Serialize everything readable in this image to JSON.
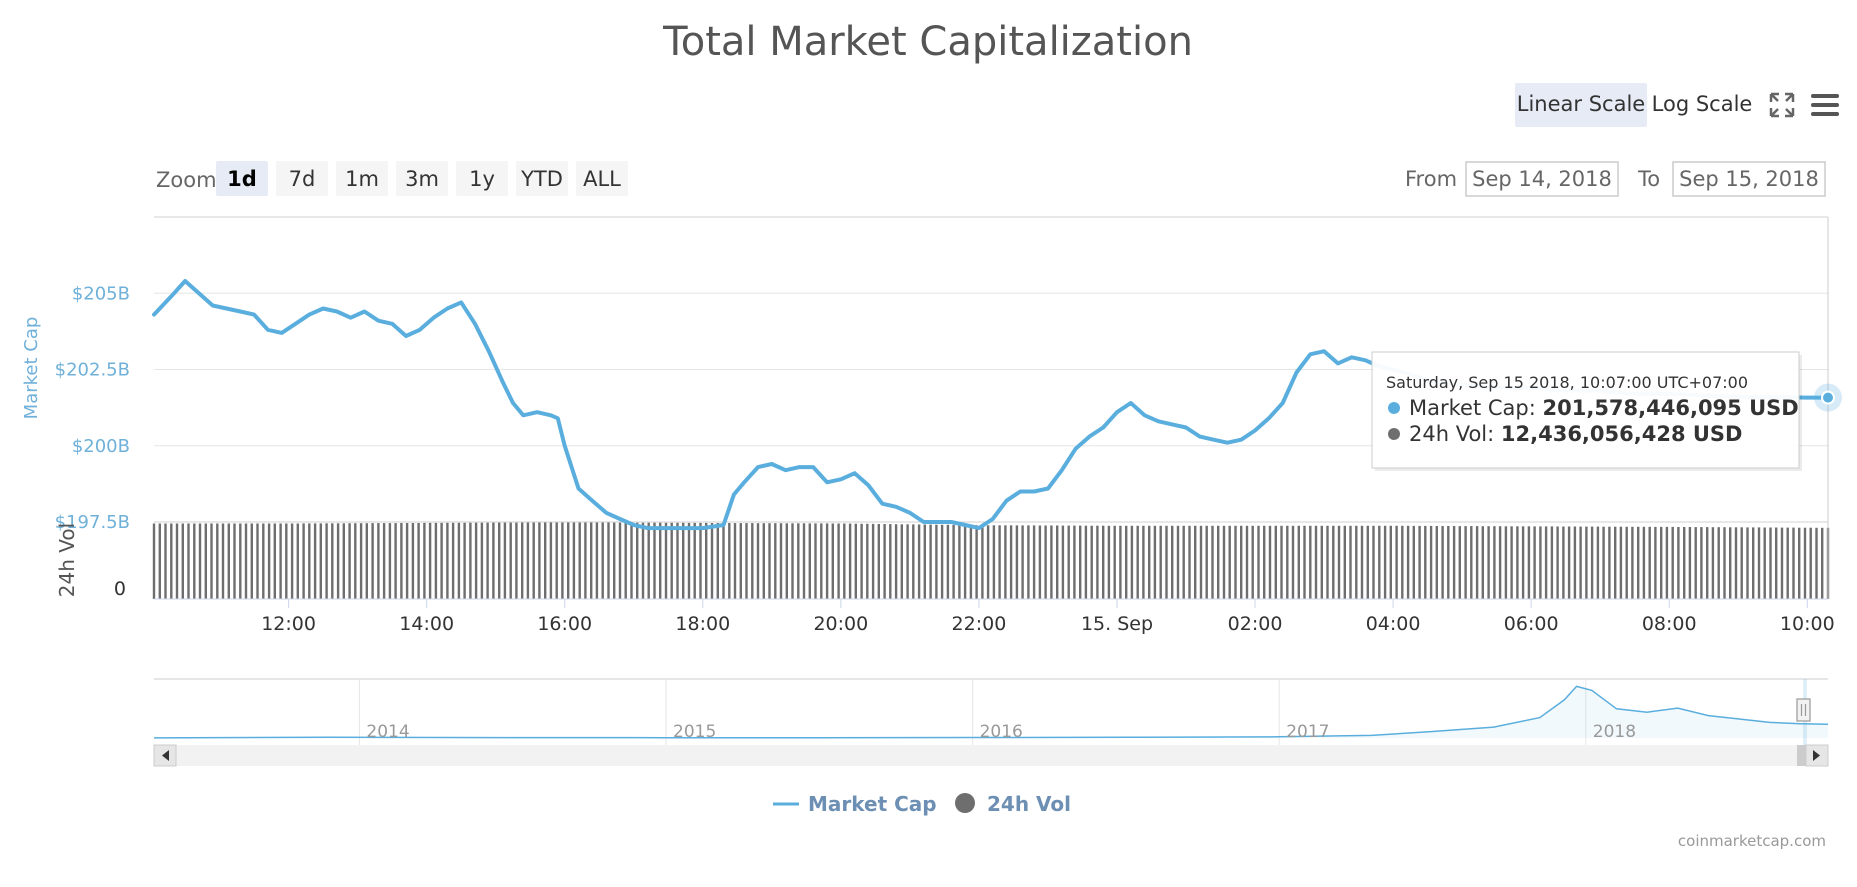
{
  "title": "Total Market Capitalization",
  "scale_buttons": {
    "linear": "Linear Scale",
    "log": "Log Scale",
    "selected": "linear"
  },
  "icons": {
    "fullscreen": "fullscreen-icon",
    "menu": "hamburger-menu-icon"
  },
  "zoom": {
    "label": "Zoom",
    "options": [
      "1d",
      "7d",
      "1m",
      "3m",
      "1y",
      "YTD",
      "ALL"
    ],
    "selected": "1d"
  },
  "range": {
    "from_label": "From",
    "from_value": "Sep 14, 2018",
    "to_label": "To",
    "to_value": "Sep 15, 2018"
  },
  "tooltip": {
    "date": "Saturday, Sep 15 2018, 10:07:00 UTC+07:00",
    "marketcap_label": "Market Cap:",
    "marketcap_value": "201,578,446,095 USD",
    "vol_label": "24h Vol:",
    "vol_value": "12,436,056,428 USD"
  },
  "legend": {
    "marketcap": "Market Cap",
    "vol": "24h Vol"
  },
  "credit": "coinmarketcap.com",
  "colors": {
    "marketcap": "#5aaede",
    "vol": "#6e6e6e",
    "axis_label": "#6fb1d9"
  },
  "chart_data": {
    "type": "line",
    "xlabel": "",
    "ylabel": "Market Cap",
    "ylabel_vol": "24h Vol",
    "x_ticks": [
      "12:00",
      "14:00",
      "16:00",
      "18:00",
      "20:00",
      "22:00",
      "15. Sep",
      "02:00",
      "04:00",
      "06:00",
      "08:00",
      "10:00"
    ],
    "x_tick_hours": [
      12,
      14,
      16,
      18,
      20,
      22,
      24,
      26,
      28,
      30,
      32,
      34
    ],
    "y_ticks": [
      "$197.5B",
      "$200B",
      "$202.5B",
      "$205B"
    ],
    "y_tick_values": [
      197.5,
      200,
      202.5,
      205
    ],
    "ylim": [
      197.5,
      207.5
    ],
    "vol_ticks": [
      "0"
    ],
    "xlim_hours": [
      10.05,
      34.3
    ],
    "series": [
      {
        "name": "Market Cap",
        "unit": "billion USD",
        "x_hours": [
          10.05,
          10.3,
          10.5,
          10.7,
          10.9,
          11.1,
          11.3,
          11.5,
          11.7,
          11.9,
          12.1,
          12.3,
          12.5,
          12.7,
          12.9,
          13.1,
          13.3,
          13.5,
          13.7,
          13.9,
          14.1,
          14.3,
          14.5,
          14.7,
          14.9,
          15.1,
          15.25,
          15.4,
          15.6,
          15.8,
          15.9,
          16.0,
          16.2,
          16.4,
          16.6,
          16.8,
          17.0,
          17.2,
          17.5,
          18.0,
          18.3,
          18.45,
          18.6,
          18.8,
          19.0,
          19.2,
          19.4,
          19.6,
          19.8,
          20.0,
          20.2,
          20.4,
          20.6,
          20.8,
          21.0,
          21.2,
          21.4,
          21.6,
          21.8,
          22.0,
          22.2,
          22.4,
          22.6,
          22.8,
          23.0,
          23.2,
          23.4,
          23.6,
          23.8,
          24.0,
          24.2,
          24.4,
          24.6,
          24.8,
          25.0,
          25.2,
          25.4,
          25.6,
          25.8,
          26.0,
          26.2,
          26.4,
          26.6,
          26.8,
          27.0,
          27.2,
          27.4,
          27.6,
          27.8,
          28.0,
          28.3,
          28.6,
          29.0,
          29.5,
          30.0,
          30.5,
          31.0,
          31.5,
          32.0,
          32.5,
          33.0,
          33.5,
          34.0,
          34.3
        ],
        "values": [
          204.3,
          204.9,
          205.4,
          205.0,
          204.6,
          204.5,
          204.4,
          204.3,
          203.8,
          203.7,
          204.0,
          204.3,
          204.5,
          204.4,
          204.2,
          204.4,
          204.1,
          204.0,
          203.6,
          203.8,
          204.2,
          204.5,
          204.7,
          204.0,
          203.1,
          202.1,
          201.4,
          201.0,
          201.1,
          201.0,
          200.9,
          200.0,
          198.6,
          198.2,
          197.8,
          197.6,
          197.4,
          197.3,
          197.3,
          197.3,
          197.4,
          198.4,
          198.8,
          199.3,
          199.4,
          199.2,
          199.3,
          199.3,
          198.8,
          198.9,
          199.1,
          198.7,
          198.1,
          198.0,
          197.8,
          197.5,
          197.5,
          197.5,
          197.4,
          197.3,
          197.6,
          198.2,
          198.5,
          198.5,
          198.6,
          199.2,
          199.9,
          200.3,
          200.6,
          201.1,
          201.4,
          201.0,
          200.8,
          200.7,
          200.6,
          200.3,
          200.2,
          200.1,
          200.2,
          200.5,
          200.9,
          201.4,
          202.4,
          203.0,
          203.1,
          202.7,
          202.9,
          202.8,
          202.6,
          202.5,
          202.3,
          202.1,
          202.0,
          201.9,
          201.9,
          201.8,
          201.8,
          201.7,
          201.7,
          201.65,
          201.6,
          201.6,
          201.58,
          201.58
        ]
      },
      {
        "name": "24h Vol",
        "unit": "billion USD",
        "x_hours": [
          10.05,
          12.0,
          14.0,
          16.0,
          18.0,
          20.0,
          22.0,
          24.0,
          26.0,
          28.0,
          30.0,
          32.0,
          34.3
        ],
        "values": [
          13.2,
          13.2,
          13.3,
          13.4,
          13.3,
          13.2,
          12.9,
          12.8,
          12.8,
          12.8,
          12.7,
          12.6,
          12.44
        ]
      }
    ],
    "tooltip_point": {
      "x_hours": 34.3,
      "marketcap": 201.578446095,
      "vol": 12.436056428
    },
    "navigator": {
      "x_ticks": [
        "2014",
        "2015",
        "2016",
        "2017",
        "2018"
      ],
      "x_tick_years": [
        2014,
        2015,
        2016,
        2017,
        2018
      ],
      "xlim_years": [
        2013.33,
        2018.79
      ],
      "series_years": [
        2013.33,
        2013.9,
        2014.5,
        2015.0,
        2015.5,
        2016.0,
        2016.5,
        2017.0,
        2017.3,
        2017.5,
        2017.7,
        2017.85,
        2017.93,
        2017.97,
        2018.02,
        2018.1,
        2018.2,
        2018.3,
        2018.4,
        2018.5,
        2018.6,
        2018.7,
        2018.79
      ],
      "series_values": [
        1.6,
        10,
        6,
        4,
        3.5,
        7,
        11,
        18,
        38,
        95,
        160,
        300,
        560,
        760,
        700,
        430,
        380,
        440,
        330,
        280,
        230,
        210,
        201
      ]
    }
  }
}
